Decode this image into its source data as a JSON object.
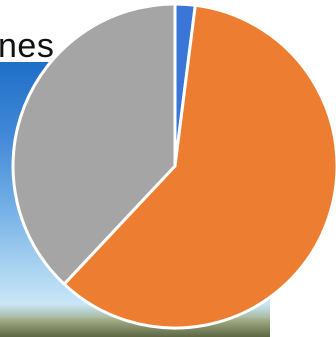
{
  "background": {
    "text_fragment": "nes"
  },
  "chart_data": {
    "type": "pie",
    "title": "",
    "legend": "none",
    "slices": [
      {
        "value": 2,
        "color": "#3a76d8"
      },
      {
        "value": 60,
        "color": "#ed7d31"
      },
      {
        "value": 38,
        "color": "#a5a5a5"
      }
    ]
  }
}
